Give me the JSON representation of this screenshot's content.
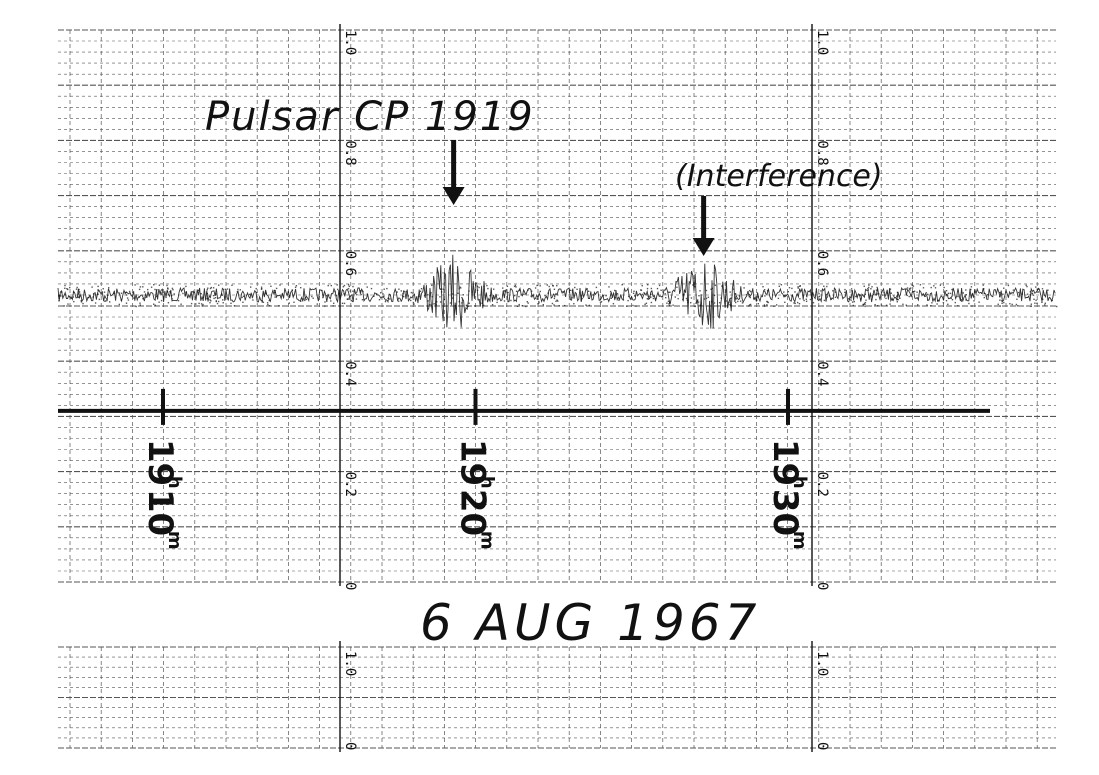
{
  "chart_data": [
    {
      "type": "line",
      "panel": "upper-strip",
      "annotations": {
        "title": "Pulsar CP 1919",
        "interference": "(Interference)",
        "date": "6 AUG 1967"
      },
      "y_ticks": [
        "0",
        "0.2",
        "0.4",
        "0.6",
        "0.8",
        "1.0"
      ],
      "ylim": [
        0,
        1.0
      ],
      "grid": true,
      "time_marks": [
        {
          "hour": "19",
          "hour_unit": "h",
          "minute": "10",
          "minute_unit": "m"
        },
        {
          "hour": "19",
          "hour_unit": "h",
          "minute": "20",
          "minute_unit": "m"
        },
        {
          "hour": "19",
          "hour_unit": "h",
          "minute": "30",
          "minute_unit": "m"
        }
      ],
      "series": [
        {
          "role": "signal-trace",
          "baseline": 0.52,
          "events": [
            {
              "label": "CP 1919",
              "x_minute": 19.3,
              "peak": 0.6
            },
            {
              "label": "Interference",
              "x_minute": 27.3,
              "peak": 0.6
            }
          ]
        },
        {
          "role": "time-baseline",
          "level": 0.31
        }
      ]
    },
    {
      "type": "line",
      "panel": "lower-strip",
      "y_ticks": [
        "0",
        "1.0"
      ],
      "ylim": [
        0,
        1.0
      ],
      "grid": true
    }
  ],
  "colors": {
    "paper": "#ffffff",
    "ink": "#111111",
    "grid": "#555555"
  }
}
